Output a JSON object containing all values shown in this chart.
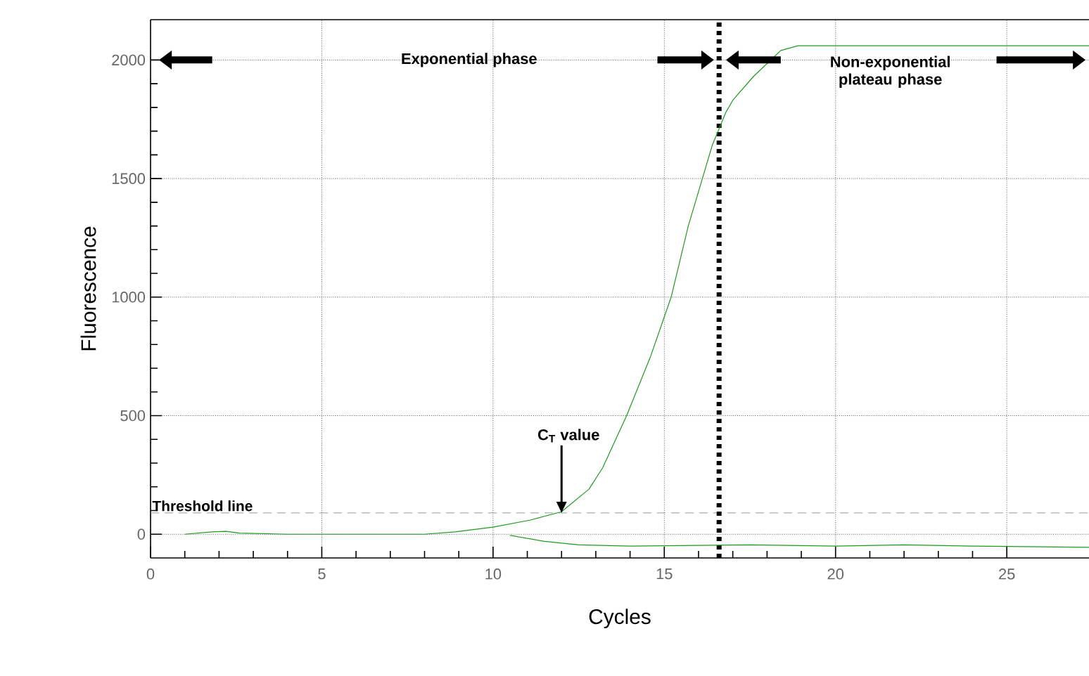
{
  "chart_data": {
    "type": "line",
    "xlabel": "Cycles",
    "ylabel": "Fluorescence",
    "xlim": [
      0,
      27.4
    ],
    "ylim": [
      -100,
      2170
    ],
    "xticks": [
      0,
      5,
      10,
      15,
      20,
      25
    ],
    "yticks": [
      0,
      500,
      1000,
      1500,
      2000
    ],
    "grid": true,
    "series": [
      {
        "color": "#1f9a1f",
        "x": [
          1,
          1.8,
          2.2,
          2.6,
          4,
          6,
          8,
          8.9,
          10,
          11.1,
          12,
          12.8,
          13.2,
          13.9,
          14.6,
          15.2,
          15.7,
          16.4,
          16.8,
          17.0,
          17.6,
          18.4,
          18.9,
          22,
          25,
          27.4
        ],
        "values": [
          0,
          10,
          12,
          5,
          0,
          0,
          0,
          10,
          30,
          60,
          95,
          190,
          280,
          500,
          750,
          1000,
          1300,
          1640,
          1780,
          1830,
          1930,
          2040,
          2060,
          2060,
          2060,
          2060
        ]
      },
      {
        "color": "#1f9a1f",
        "x": [
          10.5,
          11.5,
          12.5,
          14,
          17.5,
          20,
          22,
          24,
          27.4
        ],
        "values": [
          -5,
          -30,
          -45,
          -50,
          -45,
          -50,
          -45,
          -50,
          -55
        ]
      }
    ],
    "ref_lines": [
      {
        "axis": "y",
        "value": 90,
        "label": "Threshold line",
        "color": "#808080",
        "line_style": "dashed"
      },
      {
        "axis": "x",
        "value": 16.6,
        "color": "#000000",
        "line_style": "dotted"
      }
    ],
    "annotations": [
      "Exponential phase",
      "Non-exponential plateau phase",
      {
        "text": "C$_{T}$ value",
        "x": 12,
        "y": 90
      }
    ]
  }
}
